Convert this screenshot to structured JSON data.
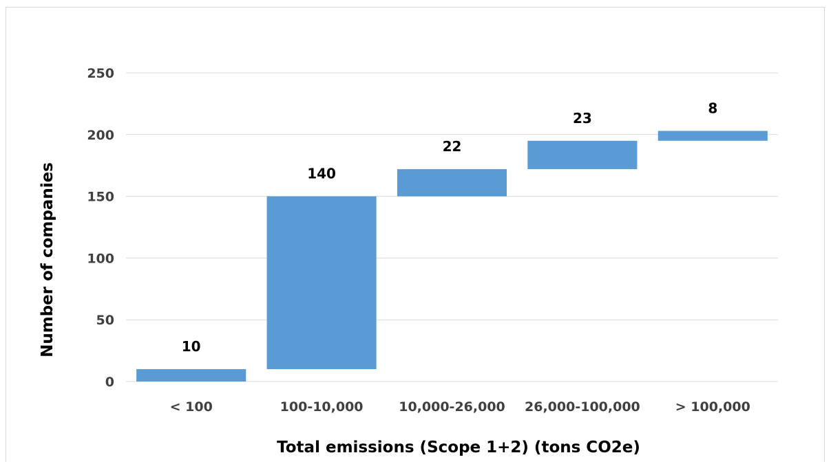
{
  "chart_data": {
    "type": "bar",
    "subtype": "waterfall",
    "title": "",
    "xlabel": "Total emissions (Scope 1+2) (tons CO2e)",
    "ylabel": "Number of companies",
    "categories": [
      "< 100",
      "100-10,000",
      "10,000-26,000",
      "26,000-100,000",
      "> 100,000"
    ],
    "values": [
      10,
      140,
      22,
      23,
      8
    ],
    "data_labels": [
      "10",
      "140",
      "22",
      "23",
      "8"
    ],
    "ylim": [
      0,
      250
    ],
    "yticks": [
      "0",
      "50",
      "100",
      "150",
      "200",
      "250"
    ],
    "grid": true,
    "legend": "none",
    "colors": {
      "bar": "#5B9BD5",
      "grid": "#d9d9d9",
      "tick_text": "#404040"
    }
  }
}
